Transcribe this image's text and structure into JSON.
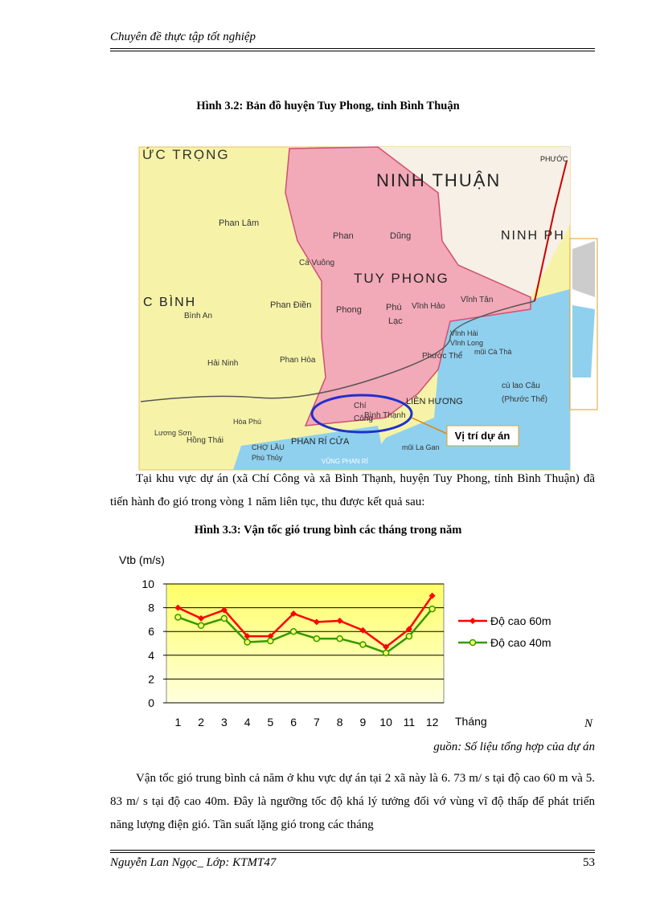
{
  "header": {
    "title": "Chuyên đề thực tập tốt nghiệp"
  },
  "map": {
    "caption": "Hình 3.2: Bản đồ huyện Tuy Phong, tỉnh Bình Thuận",
    "callout": "Vị trí dự án",
    "labels": [
      "ỨC TRỌNG",
      "NINH THUẬN",
      "NINH PH",
      "PHƯỚC",
      "TUY PHONG",
      "C BÌNH",
      "Phan Lâm",
      "Phan",
      "Dũng",
      "Cà Vuông",
      "Phan Điền",
      "Phong",
      "Phú",
      "Vĩnh Hảo",
      "Vĩnh Tân",
      "Lạc",
      "Bình An",
      "Phan Hòa",
      "Hải Ninh",
      "Phước Thể",
      "LIÊN HƯƠNG",
      "cù lao Câu",
      "(Phước Thể)",
      "Chí",
      "Công",
      "Bình Thạnh",
      "PHAN RÍ CỬA",
      "mũi La Gan",
      "VŨNG PHAN RÍ",
      "Lương Sơn",
      "Hồng Thái",
      "CHỢ LẦU",
      "Phú Thủy",
      "Hòa Phú",
      "Vĩnh Hải",
      "Vĩnh Long",
      "mũi Cà Thá"
    ]
  },
  "paragraphs": [
    "Tại khu vực dự án (xã Chí Công và xã Bình Thạnh, huyện Tuy Phong, tỉnh Bình Thuận) đã tiến hành đo gió trong vòng 1 năm liên tục, thu được kết quả sau:",
    "Vận tốc gió trung bình cả năm ở khu vực dự án tại 2 xã này là 6. 73 m/ s tại độ cao 60 m và 5. 83 m/ s tại độ cao 40m. Đây là ngưỡng tốc độ khá lý tưởng đối vớ vùng vĩ độ thấp để phát triển năng lượng điện gió. Tần suất lặng gió trong các tháng"
  ],
  "chart_data": {
    "type": "line",
    "title": "Hình 3.3: Vận tốc gió trung bình các tháng trong năm",
    "y_label": "Vtb (m/s)",
    "x_label": "Tháng",
    "categories": [
      "1",
      "2",
      "3",
      "4",
      "5",
      "6",
      "7",
      "8",
      "9",
      "10",
      "11",
      "12"
    ],
    "series": [
      {
        "name": "Độ cao 60m",
        "color": "#ff0000",
        "marker": "diamond",
        "values": [
          8.0,
          7.1,
          7.8,
          5.6,
          5.6,
          7.5,
          6.8,
          6.9,
          6.1,
          4.7,
          6.2,
          9.0
        ]
      },
      {
        "name": "Độ cao 40m",
        "color": "#339900",
        "marker": "circle",
        "values": [
          7.2,
          6.5,
          7.1,
          5.1,
          5.2,
          6.0,
          5.4,
          5.4,
          4.9,
          4.2,
          5.6,
          7.9
        ]
      }
    ],
    "ylim": [
      0,
      10
    ],
    "yticks": [
      0,
      2,
      4,
      6,
      8,
      10
    ],
    "grid": true,
    "legend": "right"
  },
  "source": [
    "N",
    "guồn: Số liệu tổng hợp của dự án"
  ],
  "footer": {
    "author": "Nguyễn Lan Ngọc_ Lớp: KTMT47",
    "page": "53"
  }
}
